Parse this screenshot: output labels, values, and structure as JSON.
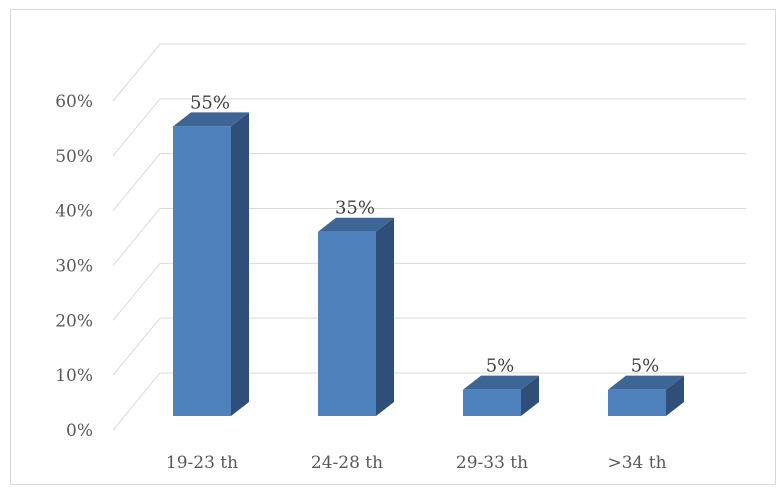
{
  "chart_data": {
    "type": "bar",
    "style": "3d-column",
    "title": "",
    "xlabel": "",
    "ylabel": "",
    "categories": [
      "19-23 th",
      "24-28 th",
      "29-33 th",
      ">34 th"
    ],
    "values": [
      55,
      35,
      5,
      5
    ],
    "data_labels": [
      "55%",
      "35%",
      "5%",
      "5%"
    ],
    "ylim": [
      0,
      60
    ],
    "yticks": [
      0,
      10,
      20,
      30,
      40,
      50,
      60
    ],
    "ytick_labels": [
      "0%",
      "10%",
      "20%",
      "30%",
      "40%",
      "50%",
      "60%"
    ],
    "grid": true,
    "legend": "none",
    "colors": {
      "bar_front": "#4f81bd",
      "bar_side": "#2f4f78",
      "bar_top": "#3d6595",
      "grid": "#d9d9d9",
      "tick_text": "#595959",
      "label_text": "#404040"
    }
  }
}
